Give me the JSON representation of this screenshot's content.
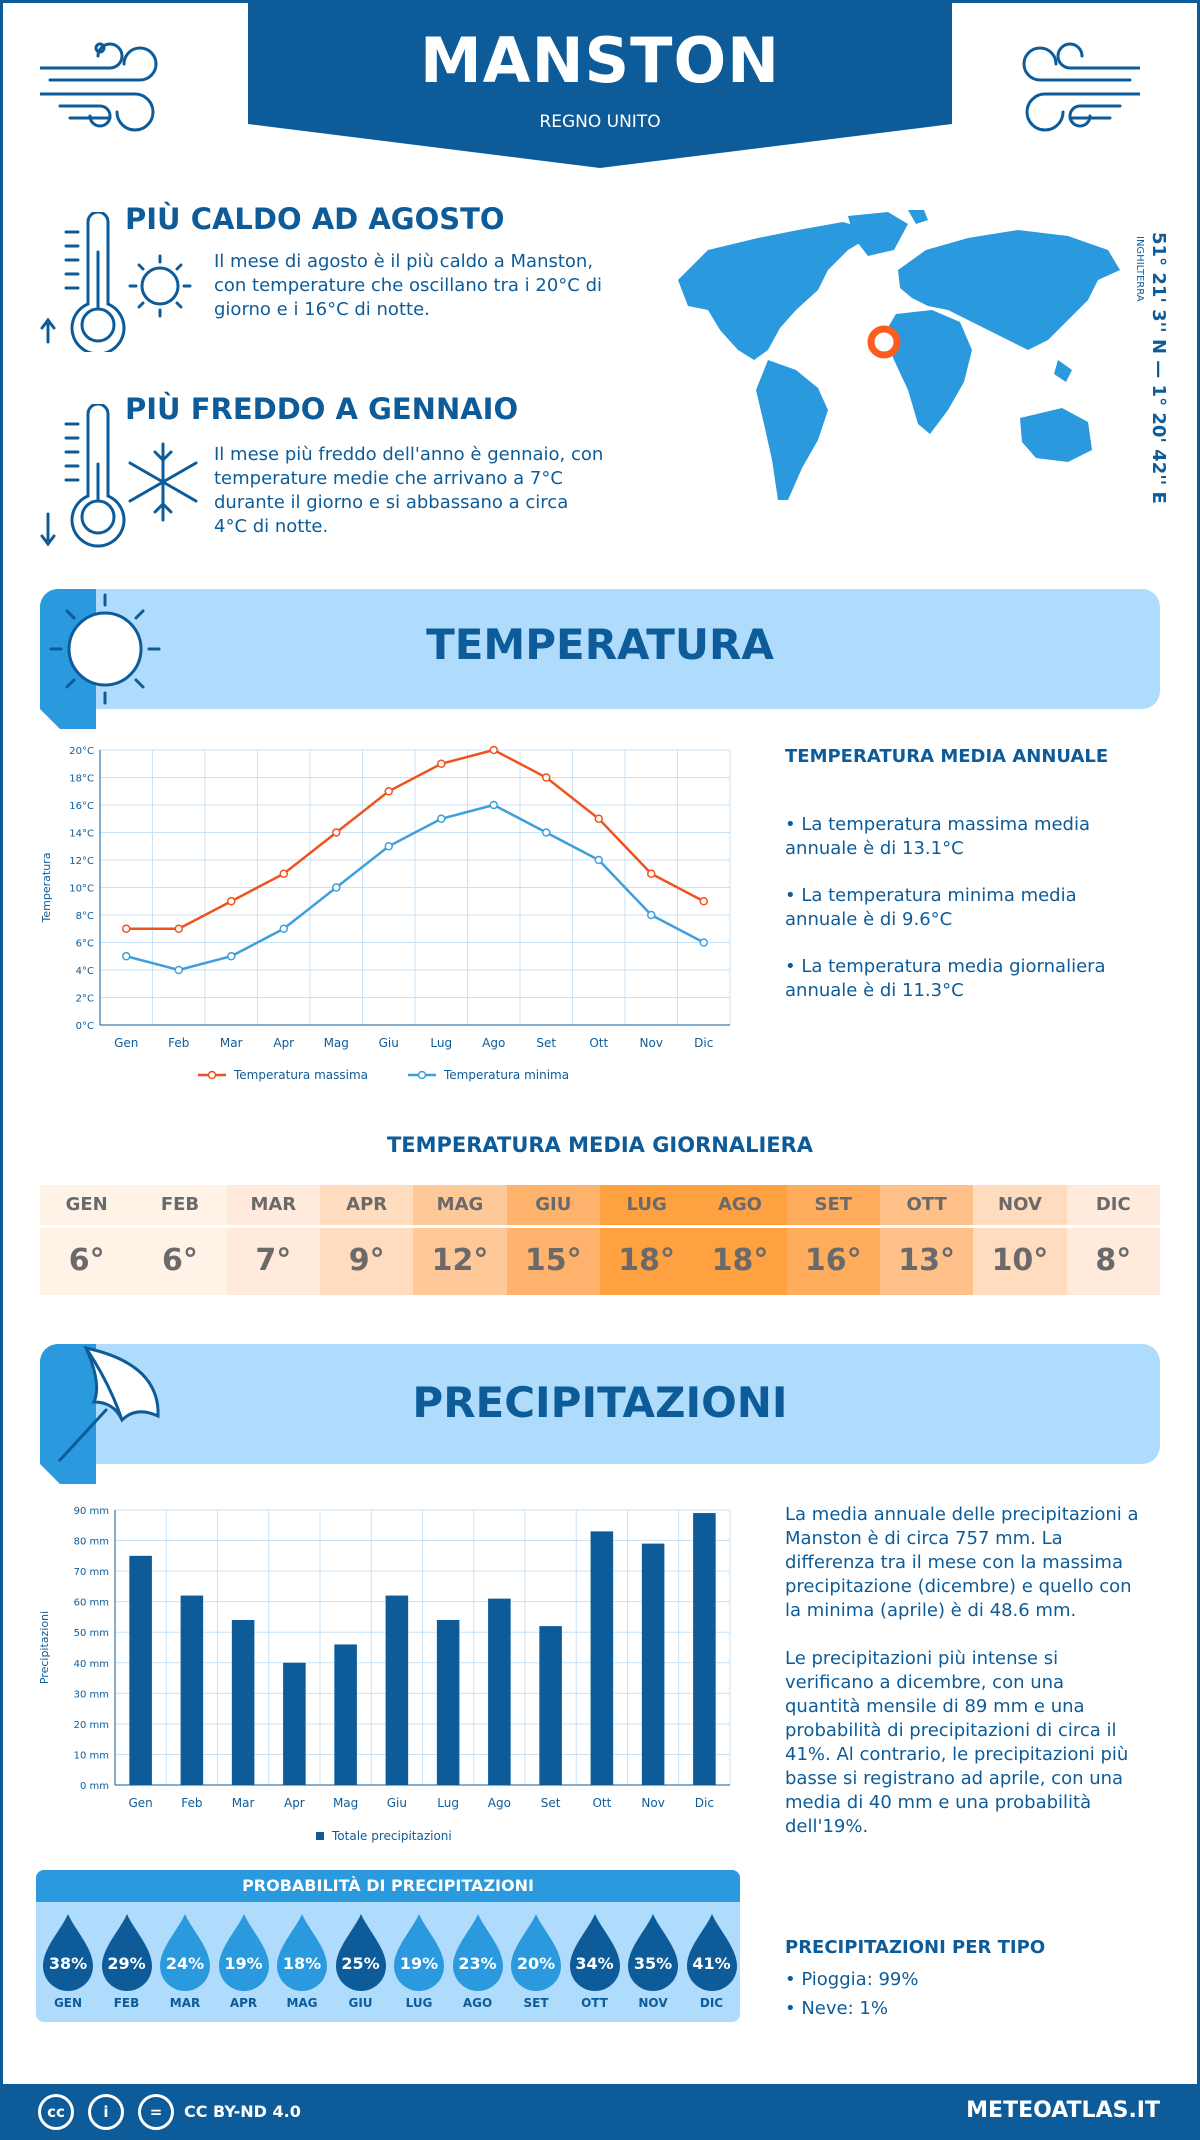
{
  "header": {
    "city": "MANSTON",
    "country": "REGNO UNITO"
  },
  "warmest": {
    "title": "PIÙ CALDO AD AGOSTO",
    "text": "Il mese di agosto è il più caldo a Manston, con temperature che oscillano tra i 20°C di giorno e i 16°C di notte."
  },
  "coldest": {
    "title": "PIÙ FREDDO A GENNAIO",
    "text": "Il mese più freddo dell'anno è gennaio, con temperature medie che arrivano a 7°C durante il giorno e si abbassano a circa 4°C di notte."
  },
  "location": {
    "coords": "51° 21' 3'' N — 1° 20' 42'' E",
    "region": "INGHILTERRA"
  },
  "temperature_section": {
    "title": "TEMPERATURA",
    "side_title": "TEMPERATURA MEDIA ANNUALE",
    "bullets": [
      "• La temperatura massima media annuale è di 13.1°C",
      "• La temperatura minima media annuale è di 9.6°C",
      "• La temperatura media giornaliera annuale è di 11.3°C"
    ],
    "daily_title": "TEMPERATURA MEDIA GIORNALIERA",
    "daily": [
      {
        "month": "GEN",
        "value": "6°",
        "color": "#fff3e8"
      },
      {
        "month": "FEB",
        "value": "6°",
        "color": "#fff3e8"
      },
      {
        "month": "MAR",
        "value": "7°",
        "color": "#ffeadb"
      },
      {
        "month": "APR",
        "value": "9°",
        "color": "#ffdcbd"
      },
      {
        "month": "MAG",
        "value": "12°",
        "color": "#ffc898"
      },
      {
        "month": "GIU",
        "value": "15°",
        "color": "#ffb26b"
      },
      {
        "month": "LUG",
        "value": "18°",
        "color": "#ffa041"
      },
      {
        "month": "AGO",
        "value": "18°",
        "color": "#ffa041"
      },
      {
        "month": "SET",
        "value": "16°",
        "color": "#ffac5c"
      },
      {
        "month": "OTT",
        "value": "13°",
        "color": "#ffc08a"
      },
      {
        "month": "NOV",
        "value": "10°",
        "color": "#ffdcbd"
      },
      {
        "month": "DIC",
        "value": "8°",
        "color": "#ffeadb"
      }
    ]
  },
  "precip_section": {
    "title": "PRECIPITAZIONI",
    "text1": "La media annuale delle precipitazioni a Manston è di circa 757 mm. La differenza tra il mese con la massima precipitazione (dicembre) e quello con la minima (aprile) è di 48.6 mm.",
    "text2": "Le precipitazioni più intense si verificano a dicembre, con una quantità mensile di 89 mm e una probabilità di precipitazioni di circa il 41%. Al contrario, le precipitazioni più basse si registrano ad aprile, con una media di 40 mm e una probabilità dell'19%.",
    "prob_title": "PROBABILITÀ DI PRECIPITAZIONI",
    "probabilities": [
      {
        "month": "GEN",
        "value": "38%",
        "color": "#0d5c99"
      },
      {
        "month": "FEB",
        "value": "29%",
        "color": "#0d5c99"
      },
      {
        "month": "MAR",
        "value": "24%",
        "color": "#2a99dd"
      },
      {
        "month": "APR",
        "value": "19%",
        "color": "#2a99dd"
      },
      {
        "month": "MAG",
        "value": "18%",
        "color": "#2a99dd"
      },
      {
        "month": "GIU",
        "value": "25%",
        "color": "#0d5c99"
      },
      {
        "month": "LUG",
        "value": "19%",
        "color": "#2a99dd"
      },
      {
        "month": "AGO",
        "value": "23%",
        "color": "#2a99dd"
      },
      {
        "month": "SET",
        "value": "20%",
        "color": "#2a99dd"
      },
      {
        "month": "OTT",
        "value": "34%",
        "color": "#0d5c99"
      },
      {
        "month": "NOV",
        "value": "35%",
        "color": "#0d5c99"
      },
      {
        "month": "DIC",
        "value": "41%",
        "color": "#0d5c99"
      }
    ],
    "type_title": "PRECIPITAZIONI PER TIPO",
    "types": [
      "• Pioggia: 99%",
      "• Neve: 1%"
    ]
  },
  "footer": {
    "license": "CC BY-ND 4.0",
    "site": "METEOATLAS.IT"
  },
  "chart_data": [
    {
      "type": "line",
      "categories": [
        "Gen",
        "Feb",
        "Mar",
        "Apr",
        "Mag",
        "Giu",
        "Lug",
        "Ago",
        "Set",
        "Ott",
        "Nov",
        "Dic"
      ],
      "ylabel": "Temperatura",
      "ylim": [
        0,
        20
      ],
      "yticks": [
        "0°C",
        "2°C",
        "4°C",
        "6°C",
        "8°C",
        "10°C",
        "12°C",
        "14°C",
        "16°C",
        "18°C",
        "20°C"
      ],
      "grid": true,
      "legend": "bottom",
      "series": [
        {
          "name": "Temperatura massima",
          "color": "#f0521e",
          "values": [
            7,
            7,
            9,
            11,
            14,
            17,
            19,
            20,
            18,
            15,
            11,
            9
          ]
        },
        {
          "name": "Temperatura minima",
          "color": "#3d9fdb",
          "values": [
            5,
            4,
            5,
            7,
            10,
            13,
            15,
            16,
            14,
            12,
            8,
            6
          ]
        }
      ]
    },
    {
      "type": "bar",
      "categories": [
        "Gen",
        "Feb",
        "Mar",
        "Apr",
        "Mag",
        "Giu",
        "Lug",
        "Ago",
        "Set",
        "Ott",
        "Nov",
        "Dic"
      ],
      "ylabel": "Precipitazioni",
      "ylim": [
        0,
        90
      ],
      "yticks": [
        "0 mm",
        "10 mm",
        "20 mm",
        "30 mm",
        "40 mm",
        "50 mm",
        "60 mm",
        "70 mm",
        "80 mm",
        "90 mm"
      ],
      "grid": true,
      "legend": "bottom",
      "series": [
        {
          "name": "Totale precipitazioni",
          "color": "#0d5c99",
          "values": [
            75,
            62,
            54,
            40,
            46,
            62,
            54,
            61,
            52,
            83,
            79,
            89
          ]
        }
      ]
    }
  ]
}
